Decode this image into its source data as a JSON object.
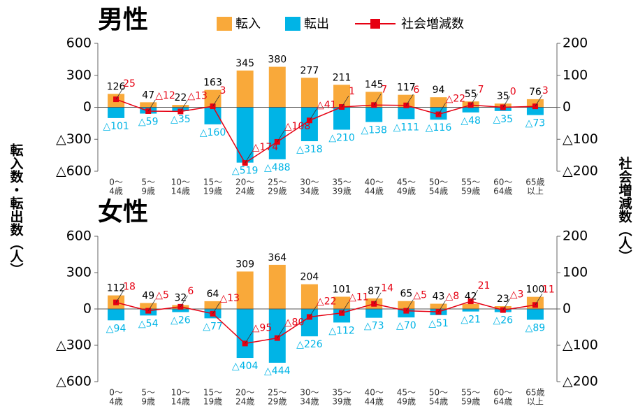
{
  "chart_data": [
    {
      "type": "bar-line",
      "title": "男性",
      "ylabel": "転入数・転出数（人）",
      "y2label": "社会増減数（人）",
      "categories": [
        [
          "0～",
          "4歳"
        ],
        [
          "5～",
          "9歳"
        ],
        [
          "10～",
          "14歳"
        ],
        [
          "15～",
          "19歳"
        ],
        [
          "20～",
          "24歳"
        ],
        [
          "25～",
          "29歳"
        ],
        [
          "30～",
          "34歳"
        ],
        [
          "35～",
          "39歳"
        ],
        [
          "40～",
          "44歳"
        ],
        [
          "45～",
          "49歳"
        ],
        [
          "50～",
          "54歳"
        ],
        [
          "55～",
          "59歳"
        ],
        [
          "60～",
          "64歳"
        ],
        [
          "65歳",
          "以上"
        ]
      ],
      "series": [
        {
          "name": "転入",
          "color": "#f9a93a",
          "values": [
            126,
            47,
            22,
            163,
            345,
            380,
            277,
            211,
            145,
            117,
            94,
            55,
            35,
            76
          ]
        },
        {
          "name": "転出",
          "color": "#00b4e6",
          "values": [
            -101,
            -59,
            -35,
            -160,
            -519,
            -488,
            -318,
            -210,
            -138,
            -111,
            -116,
            -48,
            -35,
            -73
          ],
          "value_labels": [
            "△101",
            "△59",
            "△35",
            "△160",
            "△519",
            "△488",
            "△318",
            "△210",
            "△138",
            "△111",
            "△116",
            "△48",
            "△35",
            "△73"
          ]
        },
        {
          "name": "社会増減数",
          "color": "#e60012",
          "axis": "y2",
          "values": [
            25,
            -12,
            -13,
            3,
            -174,
            -108,
            -41,
            1,
            7,
            6,
            -22,
            7,
            0,
            3
          ],
          "value_labels": [
            "25",
            "△12",
            "△13",
            "3",
            "△174",
            "△108",
            "△41",
            "1",
            "7",
            "6",
            "△22",
            "7",
            "0",
            "3"
          ]
        }
      ],
      "ylim": [
        -600,
        600
      ],
      "yticks": [
        600,
        300,
        0,
        {
          "value": -300,
          "label": "△300"
        },
        {
          "value": -600,
          "label": "△600"
        }
      ],
      "y2lim": [
        -200,
        200
      ],
      "y2ticks": [
        200,
        100,
        0,
        {
          "value": -100,
          "label": "△100"
        },
        {
          "value": -200,
          "label": "△200"
        }
      ]
    },
    {
      "type": "bar-line",
      "title": "女性",
      "categories": [
        [
          "0～",
          "4歳"
        ],
        [
          "5～",
          "9歳"
        ],
        [
          "10～",
          "14歳"
        ],
        [
          "15～",
          "19歳"
        ],
        [
          "20～",
          "24歳"
        ],
        [
          "25～",
          "29歳"
        ],
        [
          "30～",
          "34歳"
        ],
        [
          "35～",
          "39歳"
        ],
        [
          "40～",
          "44歳"
        ],
        [
          "45～",
          "49歳"
        ],
        [
          "50～",
          "54歳"
        ],
        [
          "55～",
          "59歳"
        ],
        [
          "60～",
          "64歳"
        ],
        [
          "65歳",
          "以上"
        ]
      ],
      "series": [
        {
          "color": "#f9a93a",
          "values": [
            112,
            49,
            32,
            64,
            309,
            364,
            204,
            101,
            87,
            65,
            43,
            42,
            23,
            100
          ]
        },
        {
          "color": "#00b4e6",
          "values": [
            -94,
            -54,
            -26,
            -77,
            -404,
            -444,
            -226,
            -112,
            -73,
            -70,
            -51,
            -21,
            -26,
            -89
          ],
          "value_labels": [
            "△94",
            "△54",
            "△26",
            "△77",
            "△404",
            "△444",
            "△226",
            "△112",
            "△73",
            "△70",
            "△51",
            "△21",
            "△26",
            "△89"
          ]
        },
        {
          "color": "#e60012",
          "axis": "y2",
          "values": [
            18,
            -5,
            6,
            -13,
            -95,
            -80,
            -22,
            -11,
            14,
            -5,
            -8,
            21,
            -3,
            11
          ],
          "value_labels": [
            "18",
            "△5",
            "6",
            "△13",
            "△95",
            "△80",
            "△22",
            "△11",
            "14",
            "△5",
            "△8",
            "21",
            "△3",
            "11"
          ]
        }
      ],
      "ylim": [
        -600,
        600
      ],
      "yticks": [
        600,
        300,
        0,
        {
          "value": -300,
          "label": "△300"
        },
        {
          "value": -600,
          "label": "△600"
        }
      ],
      "y2lim": [
        -200,
        200
      ],
      "y2ticks": [
        200,
        100,
        0,
        {
          "value": -100,
          "label": "△100"
        },
        {
          "value": -200,
          "label": "△200"
        }
      ]
    }
  ]
}
